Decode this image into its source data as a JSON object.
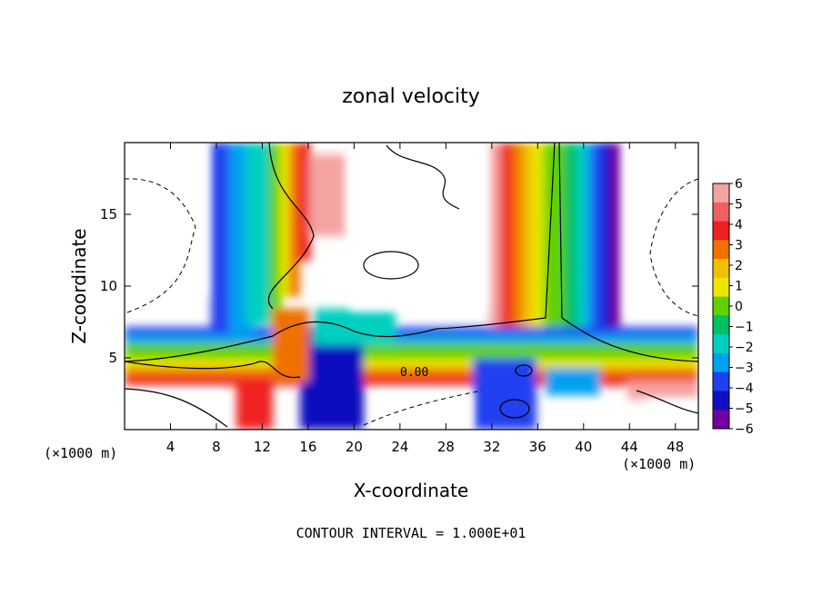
{
  "chart_data": {
    "type": "heatmap",
    "title": "zonal velocity",
    "xlabel": "X-coordinate",
    "ylabel": "Z-coordinate",
    "x_unit_note": "(×1000 m)",
    "x_unit_note_right": "(×1000 m)",
    "footer": "CONTOUR INTERVAL = 1.000E+01",
    "contour_label": "0.00",
    "xlim": [
      0,
      50
    ],
    "ylim": [
      0,
      20
    ],
    "xticks": [
      4,
      8,
      12,
      16,
      20,
      24,
      28,
      32,
      36,
      40,
      44,
      48
    ],
    "xtick_labels": [
      "4",
      "8",
      "12",
      "16",
      "20",
      "24",
      "28",
      "32",
      "36",
      "40",
      "44",
      "48"
    ],
    "yticks": [
      5,
      10,
      15
    ],
    "ytick_labels": [
      "5",
      "10",
      "15"
    ],
    "colorbar": {
      "levels": [
        6,
        5,
        4,
        3,
        2,
        1,
        0,
        -1,
        -2,
        -3,
        -4,
        -5,
        -6
      ],
      "labels": [
        "6",
        "5",
        "4",
        "3",
        "2",
        "1",
        "0",
        "−1",
        "−2",
        "−3",
        "−4",
        "−5",
        "−6"
      ],
      "colors": [
        "#f4a3a3",
        "#f06060",
        "#f02020",
        "#f07000",
        "#f0c000",
        "#e8e800",
        "#60d000",
        "#00c060",
        "#00d0c0",
        "#00a0f0",
        "#2040f0",
        "#1010c0",
        "#7000a0"
      ]
    }
  }
}
